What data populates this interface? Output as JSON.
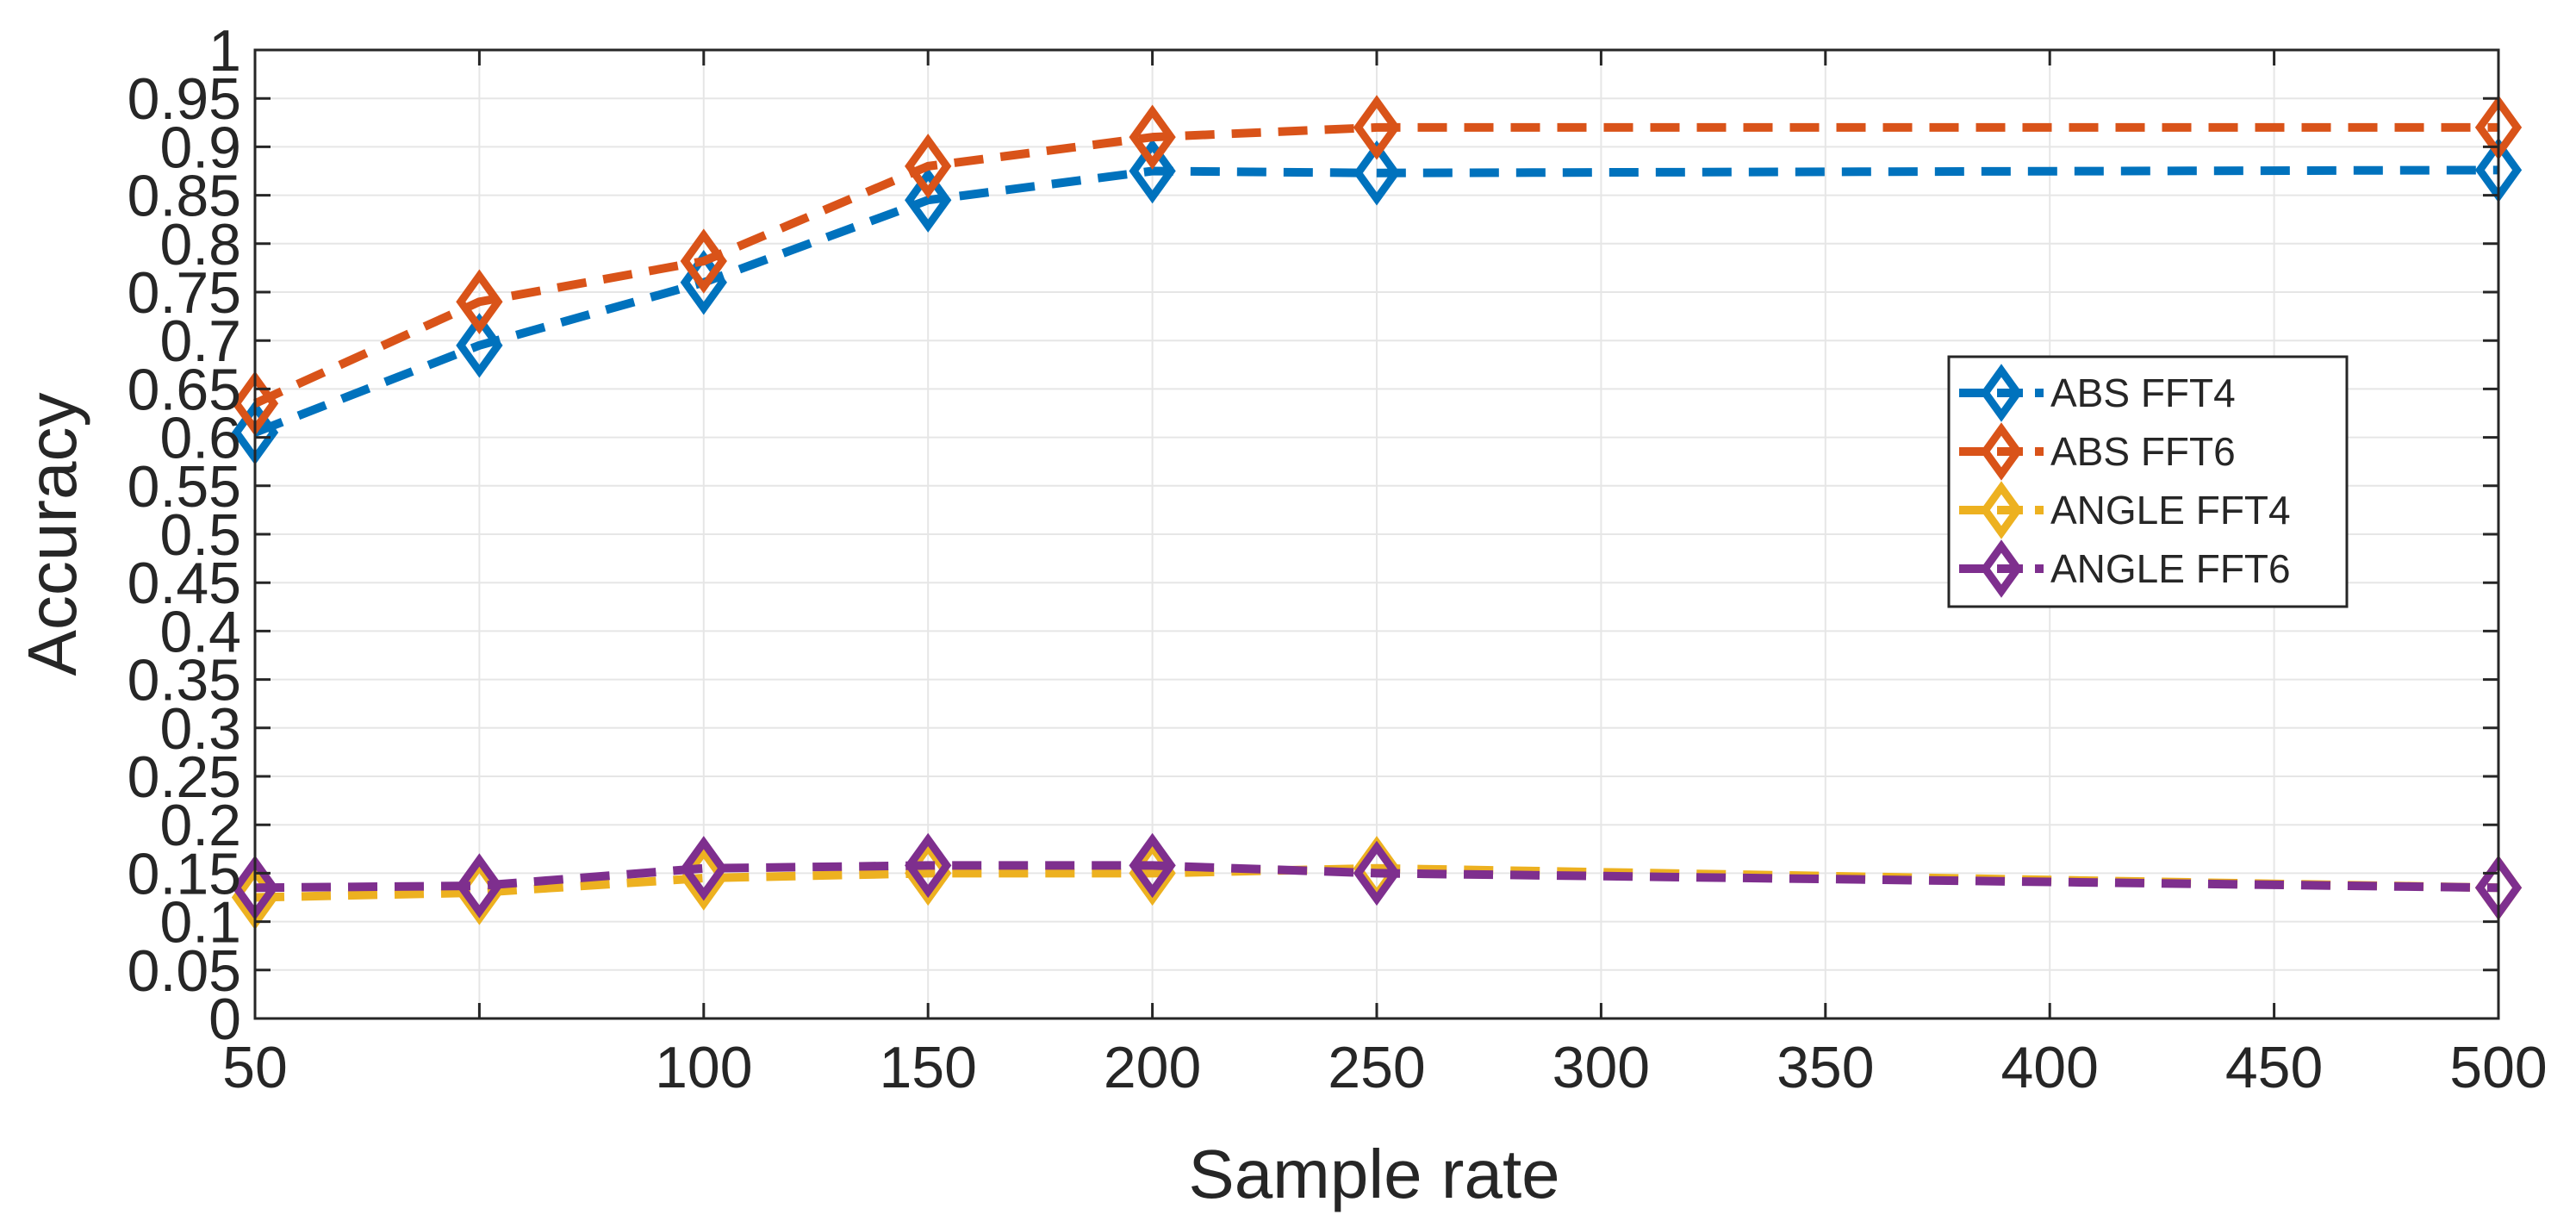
{
  "chart_data": {
    "type": "line",
    "title": "",
    "xlabel": "Sample rate",
    "ylabel": "Accuracy",
    "categories": [
      "50",
      "",
      "100",
      "150",
      "200",
      "250",
      "300",
      "350",
      "400",
      "450",
      "500"
    ],
    "x_tick_labels": [
      "50",
      "100",
      "150",
      "200",
      "250",
      "300",
      "350",
      "400",
      "450",
      "500"
    ],
    "y_tick_labels": [
      "0",
      "0.05",
      "0.1",
      "0.15",
      "0.2",
      "0.25",
      "0.3",
      "0.35",
      "0.4",
      "0.45",
      "0.5",
      "0.55",
      "0.6",
      "0.65",
      "0.7",
      "0.75",
      "0.8",
      "0.85",
      "0.9",
      "0.95",
      "1"
    ],
    "ylim": [
      0,
      1
    ],
    "grid": true,
    "legend_position": "right",
    "series": [
      {
        "name": "ABS FFT4",
        "color": "#0072BD",
        "x": [
          50,
          75,
          100,
          150,
          200,
          250,
          500
        ],
        "values": [
          0.605,
          0.695,
          0.76,
          0.845,
          0.875,
          0.873,
          0.876
        ]
      },
      {
        "name": "ABS FFT6",
        "color": "#D95319",
        "x": [
          50,
          75,
          100,
          150,
          200,
          250,
          500
        ],
        "values": [
          0.635,
          0.74,
          0.782,
          0.88,
          0.91,
          0.92,
          0.92
        ]
      },
      {
        "name": "ANGLE FFT4",
        "color": "#EDB120",
        "x": [
          50,
          75,
          100,
          150,
          200,
          250,
          500
        ],
        "values": [
          0.125,
          0.13,
          0.145,
          0.15,
          0.15,
          0.155,
          0.135
        ]
      },
      {
        "name": "ANGLE FFT6",
        "color": "#7E2F8E",
        "x": [
          50,
          75,
          100,
          150,
          200,
          250,
          500
        ],
        "values": [
          0.135,
          0.137,
          0.155,
          0.158,
          0.158,
          0.15,
          0.135
        ]
      }
    ]
  }
}
